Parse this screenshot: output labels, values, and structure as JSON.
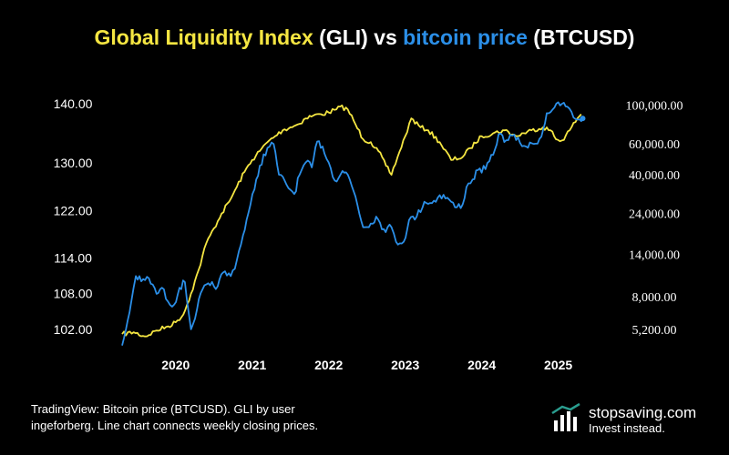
{
  "title": {
    "part1": "Global Liquidity Index",
    "part2": " (GLI) vs ",
    "part3": "bitcoin price",
    "part4": " (BTCUSD)"
  },
  "colors": {
    "background": "#000000",
    "gli": "#f5e642",
    "btc": "#2b8fe8",
    "text": "#ffffff",
    "brand_accent": "#2a9d8f"
  },
  "chart_data": {
    "type": "line",
    "title": "Global Liquidity Index (GLI) vs bitcoin price (BTCUSD)",
    "x_ticks": [
      {
        "year": 2020,
        "label": "2020"
      },
      {
        "year": 2021,
        "label": "2021"
      },
      {
        "year": 2022,
        "label": "2022"
      },
      {
        "year": 2023,
        "label": "2023"
      },
      {
        "year": 2024,
        "label": "2024"
      },
      {
        "year": 2025,
        "label": "2025"
      }
    ],
    "xlim": [
      2019.3,
      2025.35
    ],
    "left_axis": {
      "series": "GLI",
      "ylim": [
        98,
        141.5
      ],
      "ticks": [
        {
          "v": 140,
          "label": "140.00"
        },
        {
          "v": 130,
          "label": "130.00"
        },
        {
          "v": 122,
          "label": "122.00"
        },
        {
          "v": 114,
          "label": "114.00"
        },
        {
          "v": 108,
          "label": "108.00"
        },
        {
          "v": 102,
          "label": "102.00"
        }
      ]
    },
    "right_axis": {
      "series": "BTCUSD",
      "scale": "log",
      "ylim": [
        3800,
        115000
      ],
      "ticks": [
        {
          "v": 100000,
          "label": "100,000.00"
        },
        {
          "v": 60000,
          "label": "60,000.00"
        },
        {
          "v": 40000,
          "label": "40,000.00"
        },
        {
          "v": 24000,
          "label": "24,000.00"
        },
        {
          "v": 14000,
          "label": "14,000.00"
        },
        {
          "v": 8000,
          "label": "8,000.00"
        },
        {
          "v": 5200,
          "label": "5,200.00"
        }
      ]
    },
    "series": [
      {
        "name": "GLI",
        "axis": "left",
        "color": "#f5e642",
        "points": [
          [
            2019.3,
            101.2
          ],
          [
            2019.45,
            101.5
          ],
          [
            2019.6,
            100.8
          ],
          [
            2019.75,
            101.8
          ],
          [
            2019.9,
            102.5
          ],
          [
            2020.0,
            103.2
          ],
          [
            2020.1,
            104.5
          ],
          [
            2020.2,
            108.0
          ],
          [
            2020.3,
            112.0
          ],
          [
            2020.4,
            116.5
          ],
          [
            2020.5,
            119.0
          ],
          [
            2020.6,
            121.5
          ],
          [
            2020.7,
            123.5
          ],
          [
            2020.8,
            126.0
          ],
          [
            2020.9,
            128.5
          ],
          [
            2021.0,
            130.5
          ],
          [
            2021.1,
            132.0
          ],
          [
            2021.2,
            133.5
          ],
          [
            2021.3,
            134.5
          ],
          [
            2021.4,
            135.5
          ],
          [
            2021.5,
            136.0
          ],
          [
            2021.6,
            136.5
          ],
          [
            2021.7,
            137.5
          ],
          [
            2021.8,
            138.0
          ],
          [
            2021.9,
            138.2
          ],
          [
            2022.0,
            138.5
          ],
          [
            2022.1,
            139.0
          ],
          [
            2022.15,
            139.5
          ],
          [
            2022.25,
            139.0
          ],
          [
            2022.35,
            136.5
          ],
          [
            2022.45,
            134.0
          ],
          [
            2022.55,
            133.5
          ],
          [
            2022.65,
            132.0
          ],
          [
            2022.75,
            129.5
          ],
          [
            2022.82,
            128.0
          ],
          [
            2022.9,
            131.0
          ],
          [
            2023.0,
            134.5
          ],
          [
            2023.08,
            137.5
          ],
          [
            2023.2,
            136.0
          ],
          [
            2023.3,
            135.5
          ],
          [
            2023.45,
            133.5
          ],
          [
            2023.6,
            130.5
          ],
          [
            2023.75,
            131.0
          ],
          [
            2023.85,
            132.5
          ],
          [
            2024.0,
            134.5
          ],
          [
            2024.15,
            135.0
          ],
          [
            2024.3,
            135.5
          ],
          [
            2024.45,
            134.5
          ],
          [
            2024.55,
            135.0
          ],
          [
            2024.65,
            135.5
          ],
          [
            2024.8,
            136.0
          ],
          [
            2024.9,
            135.5
          ],
          [
            2024.97,
            134.0
          ],
          [
            2025.05,
            133.8
          ],
          [
            2025.15,
            135.5
          ],
          [
            2025.25,
            137.5
          ],
          [
            2025.3,
            138.2
          ]
        ]
      },
      {
        "name": "BTCUSD",
        "axis": "right",
        "color": "#2b8fe8",
        "points": [
          [
            2019.3,
            4200
          ],
          [
            2019.35,
            5200
          ],
          [
            2019.42,
            7500
          ],
          [
            2019.48,
            10500
          ],
          [
            2019.55,
            9800
          ],
          [
            2019.65,
            10200
          ],
          [
            2019.75,
            8300
          ],
          [
            2019.82,
            9000
          ],
          [
            2019.9,
            7500
          ],
          [
            2019.98,
            7200
          ],
          [
            2020.05,
            9000
          ],
          [
            2020.12,
            9700
          ],
          [
            2020.2,
            5200
          ],
          [
            2020.28,
            6800
          ],
          [
            2020.35,
            8800
          ],
          [
            2020.45,
            9300
          ],
          [
            2020.55,
            9200
          ],
          [
            2020.62,
            11000
          ],
          [
            2020.72,
            10500
          ],
          [
            2020.8,
            13000
          ],
          [
            2020.88,
            18000
          ],
          [
            2020.95,
            24000
          ],
          [
            2021.03,
            33000
          ],
          [
            2021.1,
            45000
          ],
          [
            2021.2,
            57000
          ],
          [
            2021.28,
            60000
          ],
          [
            2021.35,
            40000
          ],
          [
            2021.45,
            35000
          ],
          [
            2021.55,
            31000
          ],
          [
            2021.62,
            40000
          ],
          [
            2021.7,
            47000
          ],
          [
            2021.78,
            44000
          ],
          [
            2021.85,
            62000
          ],
          [
            2021.92,
            58000
          ],
          [
            2022.0,
            47000
          ],
          [
            2022.08,
            37000
          ],
          [
            2022.18,
            42000
          ],
          [
            2022.25,
            40000
          ],
          [
            2022.35,
            30000
          ],
          [
            2022.45,
            20000
          ],
          [
            2022.55,
            21000
          ],
          [
            2022.62,
            23000
          ],
          [
            2022.72,
            19500
          ],
          [
            2022.82,
            20000
          ],
          [
            2022.88,
            16500
          ],
          [
            2022.98,
            16500
          ],
          [
            2023.05,
            22000
          ],
          [
            2023.15,
            23000
          ],
          [
            2023.25,
            28000
          ],
          [
            2023.35,
            27500
          ],
          [
            2023.45,
            30500
          ],
          [
            2023.55,
            29500
          ],
          [
            2023.65,
            26000
          ],
          [
            2023.75,
            27000
          ],
          [
            2023.8,
            34000
          ],
          [
            2023.88,
            37500
          ],
          [
            2023.95,
            42500
          ],
          [
            2024.05,
            43000
          ],
          [
            2024.15,
            52000
          ],
          [
            2024.22,
            68000
          ],
          [
            2024.32,
            63000
          ],
          [
            2024.4,
            67000
          ],
          [
            2024.5,
            61000
          ],
          [
            2024.58,
            58000
          ],
          [
            2024.68,
            60000
          ],
          [
            2024.78,
            66000
          ],
          [
            2024.85,
            90000
          ],
          [
            2024.95,
            97000
          ],
          [
            2025.05,
            102000
          ],
          [
            2025.12,
            98000
          ],
          [
            2025.2,
            85000
          ],
          [
            2025.28,
            83000
          ],
          [
            2025.32,
            84000
          ]
        ]
      }
    ]
  },
  "footer": {
    "line1": "TradingView: Bitcoin price (BTCUSD). GLI by user",
    "line2": "ingeforberg. Line chart connects weekly closing prices."
  },
  "brand": {
    "name": "stopsaving.com",
    "tagline": "Invest instead."
  }
}
